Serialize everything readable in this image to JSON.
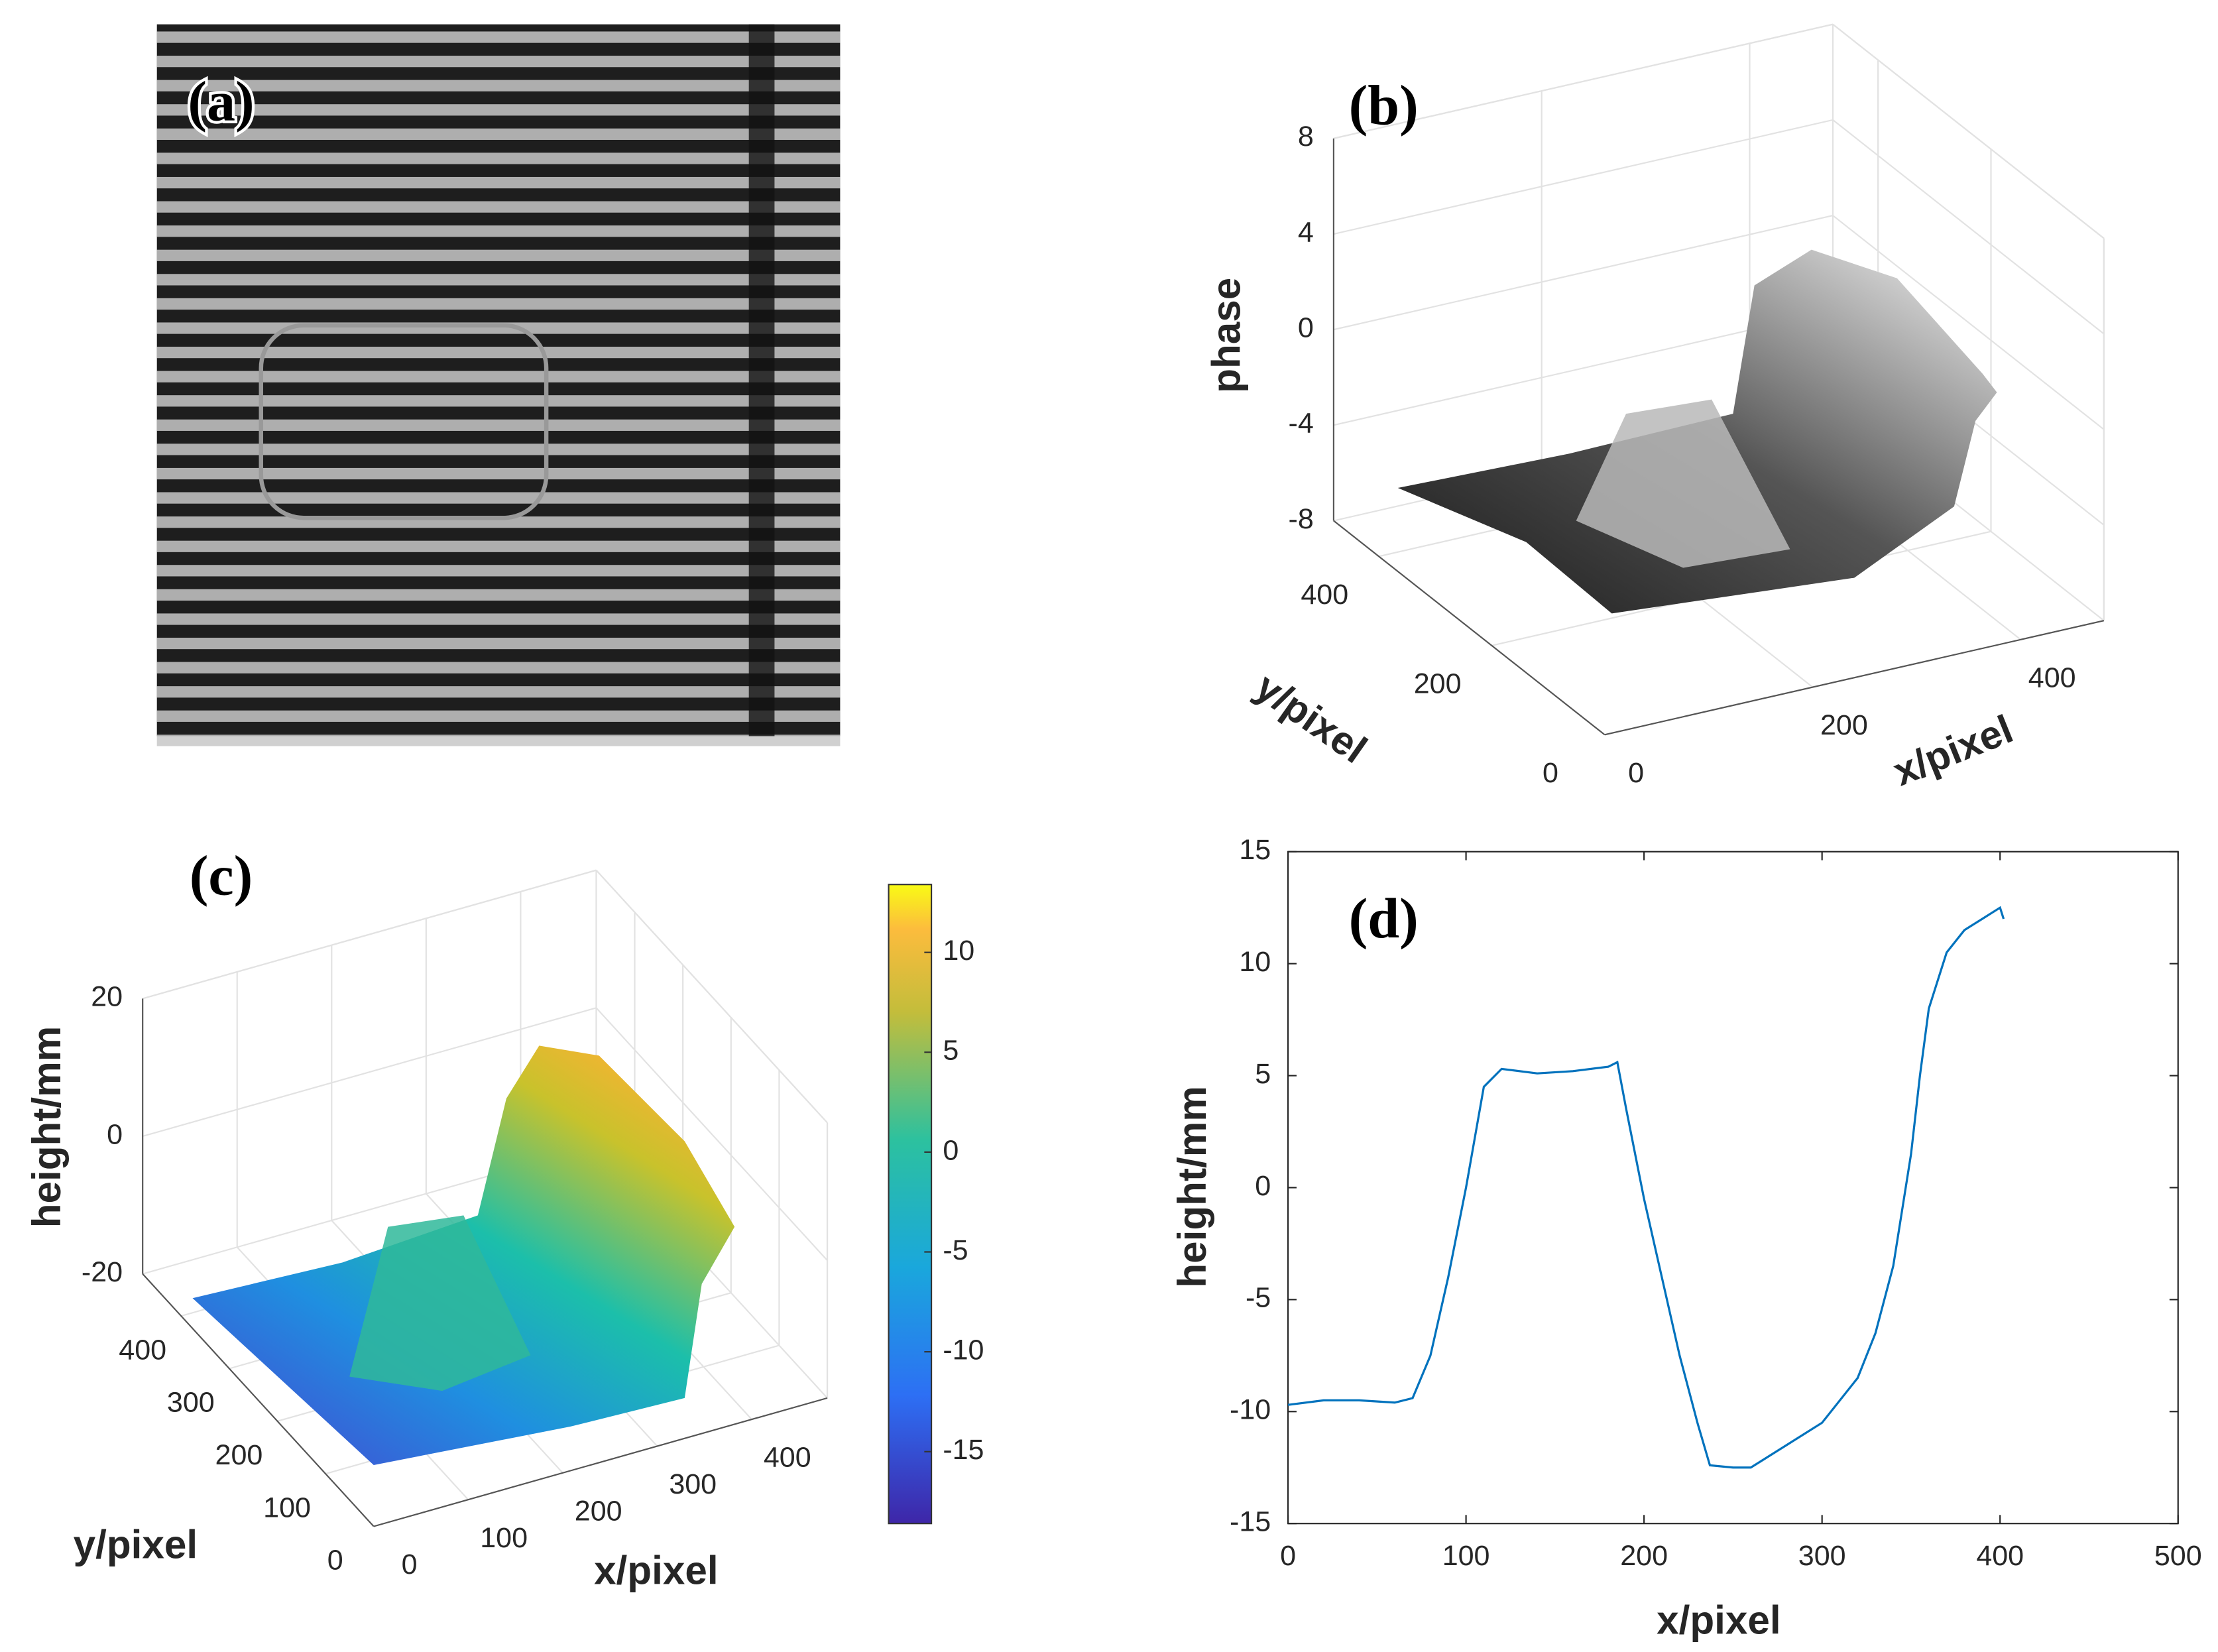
{
  "chart_data": [
    {
      "type": "image",
      "label": "(a)"
    },
    {
      "type": "surface3d",
      "label": "(b)",
      "zlabel": "phase",
      "xlabel": "x/pixel",
      "ylabel": "y/pixel",
      "xlim": [
        0,
        480
      ],
      "ylim": [
        0,
        480
      ],
      "zlim": [
        -8,
        8
      ],
      "xticks": [
        0,
        200,
        400
      ],
      "yticks": [
        0,
        200,
        400
      ],
      "zticks": [
        -8,
        -4,
        0,
        4,
        8
      ],
      "colormap": "gray"
    },
    {
      "type": "surface3d",
      "label": "(c)",
      "zlabel": "height/mm",
      "xlabel": "x/pixel",
      "ylabel": "y/pixel",
      "xlim": [
        0,
        480
      ],
      "ylim": [
        0,
        480
      ],
      "zlim": [
        -20,
        20
      ],
      "xticks": [
        0,
        100,
        200,
        300,
        400
      ],
      "yticks": [
        0,
        100,
        200,
        300,
        400
      ],
      "zticks": [
        -20,
        0,
        20
      ],
      "colormap": "parula",
      "colorbar": {
        "lim": [
          -18.6,
          13.4
        ],
        "ticks": [
          -15,
          -10,
          -5,
          0,
          5,
          10
        ]
      }
    },
    {
      "type": "line",
      "label": "(d)",
      "xlabel": "x/pixel",
      "ylabel": "height/mm",
      "color": "#0072bd",
      "xlim": [
        0,
        500
      ],
      "ylim": [
        -15,
        15
      ],
      "xticks": [
        0,
        100,
        200,
        300,
        400,
        500
      ],
      "yticks": [
        -15,
        -10,
        -5,
        0,
        5,
        10,
        15
      ],
      "x": [
        0,
        20,
        40,
        60,
        70,
        80,
        90,
        100,
        110,
        120,
        140,
        160,
        180,
        185,
        190,
        200,
        210,
        220,
        230,
        237,
        250,
        260,
        270,
        280,
        300,
        320,
        330,
        340,
        350,
        355,
        360,
        370,
        380,
        390,
        400,
        402
      ],
      "values": [
        -9.7,
        -9.5,
        -9.5,
        -9.6,
        -9.4,
        -7.5,
        -4,
        0,
        4.5,
        5.3,
        5.1,
        5.2,
        5.4,
        5.6,
        3.5,
        -0.5,
        -4,
        -7.5,
        -10.5,
        -12.4,
        -12.5,
        -12.5,
        -12,
        -11.5,
        -10.5,
        -8.5,
        -6.5,
        -3.5,
        1.5,
        5,
        8,
        10.5,
        11.5,
        12,
        12.5,
        12
      ]
    }
  ]
}
